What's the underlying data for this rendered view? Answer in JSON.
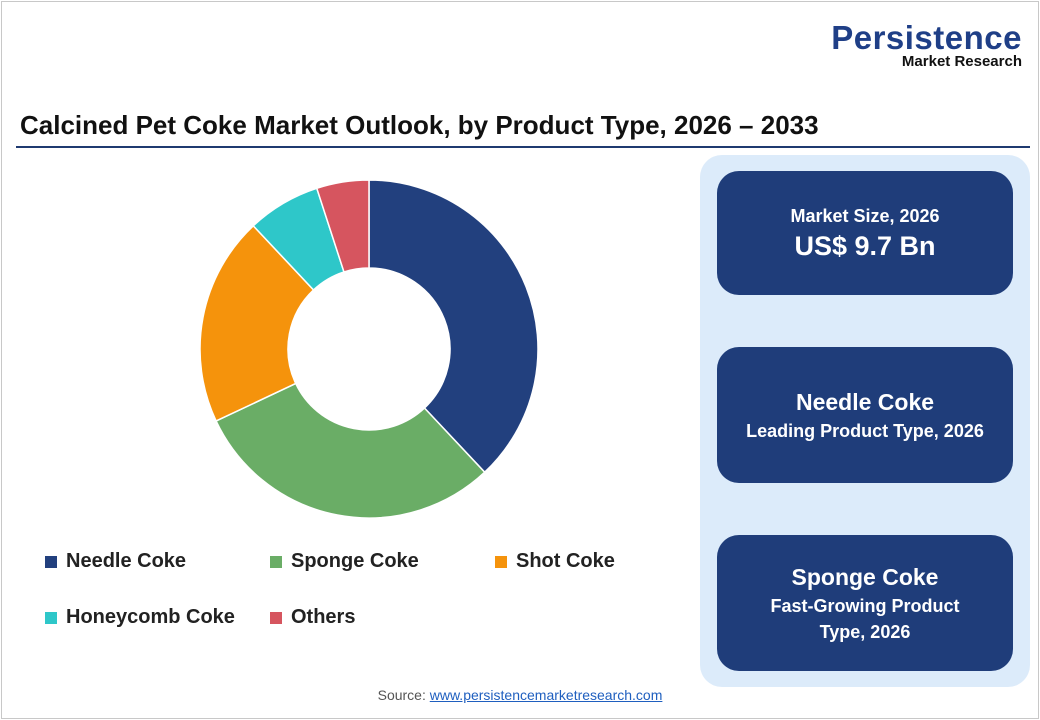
{
  "logo": {
    "line1": "Persistence",
    "line2": "Market Research"
  },
  "chart_data": {
    "type": "pie",
    "subtype": "donut",
    "title": "Calcined Pet Coke Market Outlook, by Product Type, 2026 – 2033",
    "categories": [
      "Needle Coke",
      "Sponge Coke",
      "Shot Coke",
      "Honeycomb Coke",
      "Others"
    ],
    "values": [
      38,
      30,
      20,
      7,
      5
    ],
    "unit": "%",
    "colors": [
      "#22407e",
      "#6aad66",
      "#f5930c",
      "#2ec7c9",
      "#d6555f"
    ],
    "legend_position": "bottom"
  },
  "cards": [
    {
      "label": "Market Size, 2026",
      "value": "US$ 9.7 Bn"
    },
    {
      "value": "Needle Coke",
      "label": "Leading Product Type, 2026"
    },
    {
      "value": "Sponge Coke",
      "label": "Fast-Growing Product Type, 2026"
    }
  ],
  "source": {
    "label": "Source:",
    "link": "www.persistencemarketresearch.com"
  }
}
